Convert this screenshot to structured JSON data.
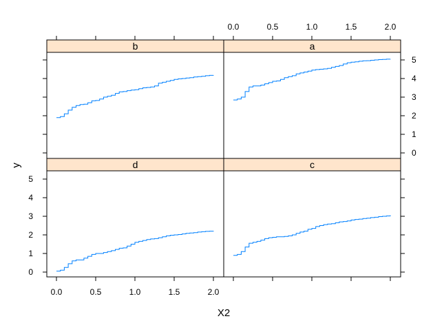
{
  "chart_data": {
    "type": "line",
    "xlabel": "X2",
    "ylabel": "y",
    "xlim": [
      0,
      2
    ],
    "ylim": [
      0,
      5
    ],
    "xticks": [
      "0.0",
      "0.5",
      "1.0",
      "1.5",
      "2.0"
    ],
    "yticks": [
      "0",
      "1",
      "2",
      "3",
      "4",
      "5"
    ],
    "line_color": "#0080ff",
    "strip_color": "#ffe5cc",
    "panels": [
      {
        "label": "b",
        "x": [
          0,
          0.05,
          0.1,
          0.15,
          0.2,
          0.25,
          0.3,
          0.35,
          0.4,
          0.45,
          0.5,
          0.55,
          0.6,
          0.65,
          0.7,
          0.75,
          0.8,
          0.85,
          0.9,
          0.95,
          1.0,
          1.05,
          1.1,
          1.15,
          1.2,
          1.25,
          1.3,
          1.35,
          1.4,
          1.45,
          1.5,
          1.55,
          1.6,
          1.65,
          1.7,
          1.75,
          1.8,
          1.85,
          1.9,
          1.95,
          2.0
        ],
        "values": [
          1.9,
          1.95,
          2.1,
          2.3,
          2.45,
          2.55,
          2.6,
          2.62,
          2.7,
          2.8,
          2.82,
          2.9,
          3.0,
          3.05,
          3.1,
          3.2,
          3.28,
          3.3,
          3.35,
          3.38,
          3.4,
          3.45,
          3.5,
          3.52,
          3.55,
          3.6,
          3.75,
          3.8,
          3.85,
          3.9,
          3.95,
          3.98,
          4.0,
          4.03,
          4.05,
          4.08,
          4.1,
          4.12,
          4.15,
          4.17,
          4.18
        ]
      },
      {
        "label": "a",
        "x": [
          0,
          0.05,
          0.1,
          0.15,
          0.2,
          0.25,
          0.3,
          0.35,
          0.4,
          0.45,
          0.5,
          0.55,
          0.6,
          0.65,
          0.7,
          0.75,
          0.8,
          0.85,
          0.9,
          0.95,
          1.0,
          1.05,
          1.1,
          1.15,
          1.2,
          1.25,
          1.3,
          1.35,
          1.4,
          1.45,
          1.5,
          1.55,
          1.6,
          1.65,
          1.7,
          1.75,
          1.8,
          1.85,
          1.9,
          1.95,
          2.0
        ],
        "values": [
          2.85,
          2.9,
          3.0,
          3.3,
          3.55,
          3.6,
          3.6,
          3.65,
          3.72,
          3.78,
          3.85,
          3.87,
          3.95,
          4.05,
          4.1,
          4.15,
          4.25,
          4.3,
          4.35,
          4.4,
          4.45,
          4.48,
          4.5,
          4.52,
          4.55,
          4.6,
          4.65,
          4.7,
          4.78,
          4.85,
          4.88,
          4.9,
          4.93,
          4.95,
          4.96,
          4.98,
          5.0,
          5.02,
          5.03,
          5.04,
          5.05
        ]
      },
      {
        "label": "d",
        "x": [
          0,
          0.05,
          0.1,
          0.15,
          0.2,
          0.25,
          0.3,
          0.35,
          0.4,
          0.45,
          0.5,
          0.55,
          0.6,
          0.65,
          0.7,
          0.75,
          0.8,
          0.85,
          0.9,
          0.95,
          1.0,
          1.05,
          1.1,
          1.15,
          1.2,
          1.25,
          1.3,
          1.35,
          1.4,
          1.45,
          1.5,
          1.55,
          1.6,
          1.65,
          1.7,
          1.75,
          1.8,
          1.85,
          1.9,
          1.95,
          2.0
        ],
        "values": [
          0.05,
          0.1,
          0.25,
          0.45,
          0.6,
          0.65,
          0.65,
          0.75,
          0.85,
          0.95,
          1.0,
          1.0,
          1.05,
          1.1,
          1.15,
          1.22,
          1.28,
          1.3,
          1.4,
          1.5,
          1.6,
          1.65,
          1.7,
          1.75,
          1.78,
          1.8,
          1.85,
          1.9,
          1.95,
          1.98,
          2.0,
          2.02,
          2.05,
          2.08,
          2.1,
          2.12,
          2.15,
          2.17,
          2.19,
          2.2,
          2.21
        ]
      },
      {
        "label": "c",
        "x": [
          0,
          0.05,
          0.1,
          0.15,
          0.2,
          0.25,
          0.3,
          0.35,
          0.4,
          0.45,
          0.5,
          0.55,
          0.6,
          0.65,
          0.7,
          0.75,
          0.8,
          0.85,
          0.9,
          0.95,
          1.0,
          1.05,
          1.1,
          1.15,
          1.2,
          1.25,
          1.3,
          1.35,
          1.4,
          1.45,
          1.5,
          1.55,
          1.6,
          1.65,
          1.7,
          1.75,
          1.8,
          1.85,
          1.9,
          1.95,
          2.0
        ],
        "values": [
          0.9,
          0.95,
          1.1,
          1.35,
          1.55,
          1.6,
          1.65,
          1.72,
          1.8,
          1.85,
          1.87,
          1.9,
          1.9,
          1.92,
          1.95,
          2.0,
          2.08,
          2.15,
          2.2,
          2.3,
          2.35,
          2.45,
          2.5,
          2.55,
          2.58,
          2.6,
          2.65,
          2.7,
          2.72,
          2.75,
          2.8,
          2.83,
          2.85,
          2.88,
          2.9,
          2.93,
          2.95,
          2.98,
          3.0,
          3.02,
          3.05
        ]
      }
    ]
  }
}
